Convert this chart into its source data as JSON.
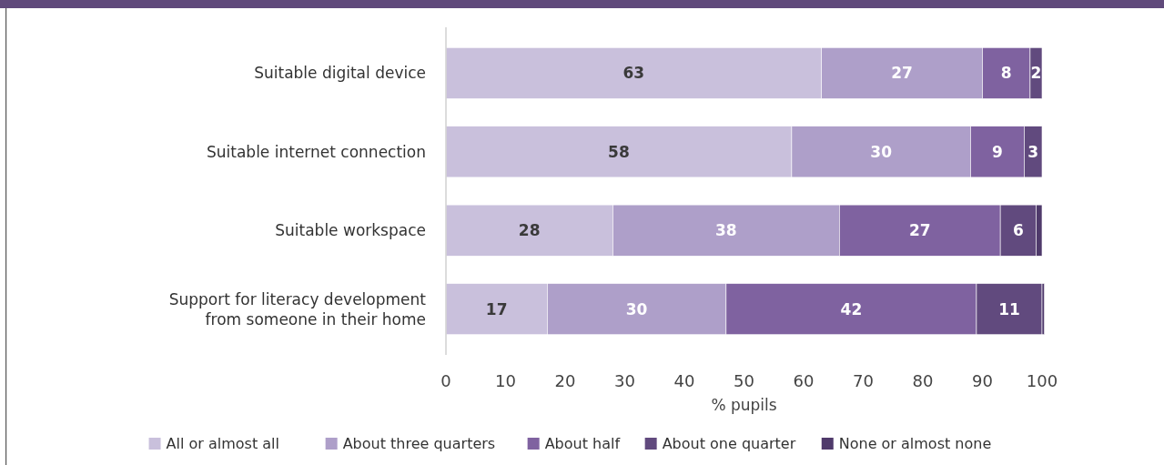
{
  "chart_data": {
    "type": "bar",
    "orientation": "horizontal",
    "stacked": true,
    "xlabel": "% pupils",
    "categories": [
      "Suitable digital device",
      "Suitable internet connection",
      "Suitable workspace",
      "Support for literacy development from someone in their home"
    ],
    "series": [
      {
        "name": "All or almost all",
        "color": "#c9c0dc",
        "values": [
          63,
          58,
          28,
          17
        ],
        "value_labels": [
          "63",
          "58",
          "28",
          "17"
        ]
      },
      {
        "name": "About three quarters",
        "color": "#ae9fc9",
        "values": [
          27,
          30,
          38,
          30
        ],
        "value_labels": [
          "27",
          "30",
          "38",
          "30"
        ]
      },
      {
        "name": "About half",
        "color": "#7f62a0",
        "values": [
          8,
          9,
          27,
          42
        ],
        "value_labels": [
          "8",
          "9",
          "27",
          "42"
        ]
      },
      {
        "name": "About one quarter",
        "color": "#614a7e",
        "values": [
          2,
          3,
          6,
          11
        ],
        "value_labels": [
          "2",
          "3",
          "6",
          "11"
        ]
      },
      {
        "name": "None or almost none",
        "color": "#4f3a6b",
        "values": [
          0,
          0,
          1,
          0.4
        ],
        "value_labels": [
          null,
          null,
          null,
          null
        ]
      }
    ],
    "xlim": [
      0,
      100
    ],
    "xticks": [
      0,
      10,
      20,
      30,
      40,
      50,
      60,
      70,
      80,
      90,
      100
    ],
    "grid": false,
    "legend": "bottom"
  }
}
